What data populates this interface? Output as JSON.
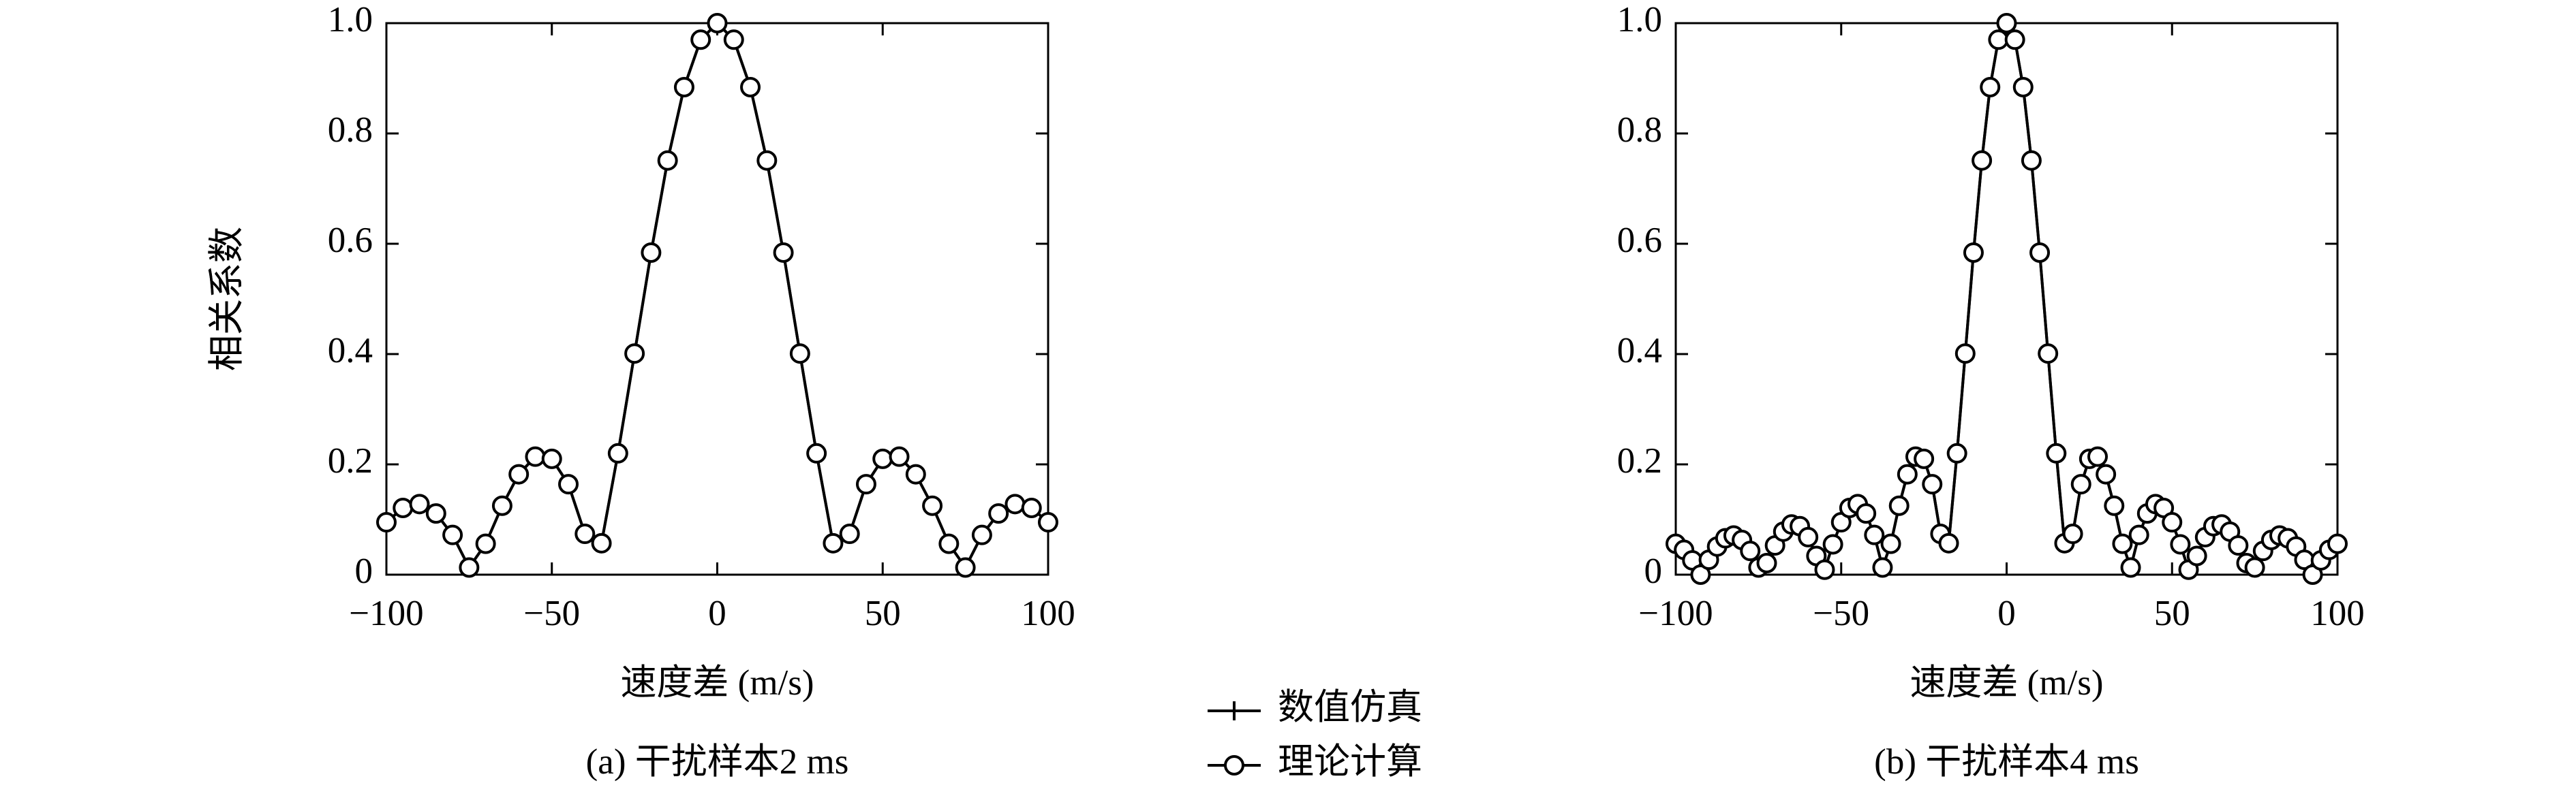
{
  "chart_data": [
    {
      "type": "line",
      "caption": "(a) 干扰样本2 ms",
      "xlabel": "速度差 (m/s)",
      "ylabel": "相关系数",
      "xlim": [
        -100,
        100
      ],
      "ylim": [
        0,
        1
      ],
      "xticks": [
        {
          "value": -100,
          "label": "−100"
        },
        {
          "value": -50,
          "label": "−50"
        },
        0,
        50,
        100
      ],
      "yticks": [
        0,
        0.2,
        0.4,
        0.6,
        0.8,
        {
          "value": 1,
          "label": "1.0"
        }
      ],
      "grid": false,
      "x": [
        -100,
        -95,
        -90,
        -85,
        -80,
        -75,
        -70,
        -65,
        -60,
        -55,
        -50,
        -45,
        -40,
        -35,
        -30,
        -25,
        -20,
        -15,
        -10,
        -5,
        0,
        5,
        10,
        15,
        20,
        25,
        30,
        35,
        40,
        45,
        50,
        55,
        60,
        65,
        70,
        75,
        80,
        85,
        90,
        95,
        100
      ],
      "series": [
        {
          "name": "数值仿真",
          "color": "#000000",
          "marker": "plus",
          "values": [
            0.095,
            0.121,
            0.128,
            0.111,
            0.072,
            0.013,
            0.056,
            0.125,
            0.182,
            0.214,
            0.21,
            0.164,
            0.074,
            0.057,
            0.22,
            0.401,
            0.584,
            0.751,
            0.884,
            0.97,
            1,
            0.97,
            0.884,
            0.751,
            0.584,
            0.401,
            0.22,
            0.057,
            0.074,
            0.164,
            0.21,
            0.214,
            0.182,
            0.125,
            0.056,
            0.013,
            0.072,
            0.111,
            0.128,
            0.121,
            0.095
          ]
        },
        {
          "name": "理论计算",
          "color": "#000000",
          "marker": "circle",
          "values": [
            0.095,
            0.121,
            0.128,
            0.111,
            0.072,
            0.013,
            0.056,
            0.125,
            0.182,
            0.214,
            0.21,
            0.164,
            0.074,
            0.057,
            0.22,
            0.401,
            0.584,
            0.751,
            0.884,
            0.97,
            1,
            0.97,
            0.884,
            0.751,
            0.584,
            0.401,
            0.22,
            0.057,
            0.074,
            0.164,
            0.21,
            0.214,
            0.182,
            0.125,
            0.056,
            0.013,
            0.072,
            0.111,
            0.128,
            0.121,
            0.095
          ]
        }
      ]
    },
    {
      "type": "line",
      "caption": "(b) 干扰样本4 ms",
      "xlabel": "速度差 (m/s)",
      "ylabel": "相关系数",
      "xlim": [
        -100,
        100
      ],
      "ylim": [
        0,
        1
      ],
      "xticks": [
        {
          "value": -100,
          "label": "−100"
        },
        {
          "value": -50,
          "label": "−50"
        },
        0,
        50,
        100
      ],
      "yticks": [
        0,
        0.2,
        0.4,
        0.6,
        0.8,
        {
          "value": 1,
          "label": "1.0"
        }
      ],
      "grid": false,
      "x": [
        -100,
        -97.5,
        -95,
        -92.5,
        -90,
        -87.5,
        -85,
        -82.5,
        -80,
        -77.5,
        -75,
        -72.5,
        -70,
        -67.5,
        -65,
        -62.5,
        -60,
        -57.5,
        -55,
        -52.5,
        -50,
        -47.5,
        -45,
        -42.5,
        -40,
        -37.5,
        -35,
        -32.5,
        -30,
        -27.5,
        -25,
        -22.5,
        -20,
        -17.5,
        -15,
        -12.5,
        -10,
        -7.5,
        -5,
        -2.5,
        0,
        2.5,
        5,
        7.5,
        10,
        12.5,
        15,
        17.5,
        20,
        22.5,
        25,
        27.5,
        30,
        32.5,
        35,
        37.5,
        40,
        42.5,
        45,
        47.5,
        50,
        52.5,
        55,
        57.5,
        60,
        62.5,
        65,
        67.5,
        70,
        72.5,
        75,
        77.5,
        80,
        82.5,
        85,
        87.5,
        90,
        92.5,
        95,
        97.5,
        100
      ],
      "series": [
        {
          "name": "数值仿真",
          "color": "#000000",
          "marker": "plus",
          "values": [
            0.056,
            0.045,
            0.026,
            0.0,
            0.027,
            0.051,
            0.066,
            0.071,
            0.063,
            0.043,
            0.013,
            0.021,
            0.053,
            0.078,
            0.091,
            0.088,
            0.068,
            0.034,
            0.009,
            0.055,
            0.095,
            0.121,
            0.128,
            0.111,
            0.072,
            0.013,
            0.056,
            0.125,
            0.182,
            0.214,
            0.21,
            0.164,
            0.074,
            0.057,
            0.22,
            0.401,
            0.584,
            0.751,
            0.884,
            0.97,
            1,
            0.97,
            0.884,
            0.751,
            0.584,
            0.401,
            0.22,
            0.057,
            0.074,
            0.164,
            0.21,
            0.214,
            0.182,
            0.125,
            0.056,
            0.013,
            0.072,
            0.111,
            0.128,
            0.121,
            0.095,
            0.055,
            0.009,
            0.034,
            0.068,
            0.088,
            0.091,
            0.078,
            0.053,
            0.021,
            0.013,
            0.043,
            0.063,
            0.071,
            0.066,
            0.051,
            0.027,
            0.0,
            0.026,
            0.045,
            0.056
          ]
        },
        {
          "name": "理论计算",
          "color": "#000000",
          "marker": "circle",
          "values": [
            0.056,
            0.045,
            0.026,
            0.0,
            0.027,
            0.051,
            0.066,
            0.071,
            0.063,
            0.043,
            0.013,
            0.021,
            0.053,
            0.078,
            0.091,
            0.088,
            0.068,
            0.034,
            0.009,
            0.055,
            0.095,
            0.121,
            0.128,
            0.111,
            0.072,
            0.013,
            0.056,
            0.125,
            0.182,
            0.214,
            0.21,
            0.164,
            0.074,
            0.057,
            0.22,
            0.401,
            0.584,
            0.751,
            0.884,
            0.97,
            1,
            0.97,
            0.884,
            0.751,
            0.584,
            0.401,
            0.22,
            0.057,
            0.074,
            0.164,
            0.21,
            0.214,
            0.182,
            0.125,
            0.056,
            0.013,
            0.072,
            0.111,
            0.128,
            0.121,
            0.095,
            0.055,
            0.009,
            0.034,
            0.068,
            0.088,
            0.091,
            0.078,
            0.053,
            0.021,
            0.013,
            0.043,
            0.063,
            0.071,
            0.066,
            0.051,
            0.027,
            0.0,
            0.026,
            0.045,
            0.056
          ]
        }
      ]
    }
  ]
}
